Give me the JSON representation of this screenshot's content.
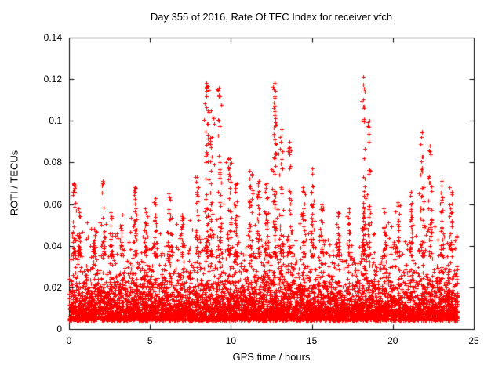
{
  "chart_data": {
    "type": "scatter",
    "title": "Day 355 of 2016, Rate Of TEC Index for receiver vfch",
    "xlabel": "GPS time / hours",
    "ylabel": "ROTI / TECUs",
    "xlim": [
      0,
      25
    ],
    "ylim": [
      0,
      0.14
    ],
    "xticks": [
      "0",
      "5",
      "10",
      "15",
      "20",
      "25"
    ],
    "xtick_values": [
      0,
      5,
      10,
      15,
      20,
      25
    ],
    "yticks": [
      "0",
      "0.02",
      "0.04",
      "0.06",
      "0.08",
      "0.1",
      "0.12",
      "0.14"
    ],
    "ytick_values": [
      0,
      0.02,
      0.04,
      0.06,
      0.08,
      0.1,
      0.12,
      0.14
    ],
    "marker": "plus",
    "marker_color": "#ff0000",
    "axis_color": "#000000",
    "grid": false,
    "legend": "none",
    "x_data_range": [
      0,
      24
    ],
    "baseline": {
      "y_min": 0.004,
      "y_typical_low": 0.008,
      "y_typical_high": 0.035,
      "tail_max": 0.055,
      "n_points": 7000
    },
    "spikes": [
      {
        "x": 0.3,
        "peak": 0.07,
        "n": 28
      },
      {
        "x": 0.6,
        "peak": 0.058,
        "n": 18
      },
      {
        "x": 1.6,
        "peak": 0.048,
        "n": 15
      },
      {
        "x": 2.1,
        "peak": 0.071,
        "n": 22
      },
      {
        "x": 2.6,
        "peak": 0.056,
        "n": 18
      },
      {
        "x": 3.2,
        "peak": 0.05,
        "n": 15
      },
      {
        "x": 4.1,
        "peak": 0.068,
        "n": 26
      },
      {
        "x": 4.7,
        "peak": 0.058,
        "n": 18
      },
      {
        "x": 5.3,
        "peak": 0.063,
        "n": 22
      },
      {
        "x": 6.2,
        "peak": 0.065,
        "n": 22
      },
      {
        "x": 7.0,
        "peak": 0.055,
        "n": 18
      },
      {
        "x": 7.9,
        "peak": 0.073,
        "n": 26
      },
      {
        "x": 8.5,
        "peak": 0.118,
        "n": 55
      },
      {
        "x": 8.8,
        "peak": 0.105,
        "n": 35
      },
      {
        "x": 9.3,
        "peak": 0.116,
        "n": 40
      },
      {
        "x": 9.9,
        "peak": 0.082,
        "n": 35
      },
      {
        "x": 10.3,
        "peak": 0.07,
        "n": 28
      },
      {
        "x": 11.2,
        "peak": 0.076,
        "n": 30
      },
      {
        "x": 11.7,
        "peak": 0.071,
        "n": 26
      },
      {
        "x": 12.2,
        "peak": 0.07,
        "n": 26
      },
      {
        "x": 12.7,
        "peak": 0.118,
        "n": 60
      },
      {
        "x": 13.1,
        "peak": 0.096,
        "n": 35
      },
      {
        "x": 13.6,
        "peak": 0.09,
        "n": 28
      },
      {
        "x": 14.5,
        "peak": 0.068,
        "n": 22
      },
      {
        "x": 15.0,
        "peak": 0.077,
        "n": 30
      },
      {
        "x": 15.6,
        "peak": 0.06,
        "n": 18
      },
      {
        "x": 16.6,
        "peak": 0.056,
        "n": 16
      },
      {
        "x": 17.3,
        "peak": 0.058,
        "n": 16
      },
      {
        "x": 18.2,
        "peak": 0.121,
        "n": 45
      },
      {
        "x": 18.5,
        "peak": 0.1,
        "n": 28
      },
      {
        "x": 19.5,
        "peak": 0.058,
        "n": 16
      },
      {
        "x": 20.3,
        "peak": 0.061,
        "n": 20
      },
      {
        "x": 21.1,
        "peak": 0.066,
        "n": 22
      },
      {
        "x": 21.8,
        "peak": 0.095,
        "n": 32
      },
      {
        "x": 22.3,
        "peak": 0.088,
        "n": 26
      },
      {
        "x": 23.0,
        "peak": 0.071,
        "n": 26
      },
      {
        "x": 23.6,
        "peak": 0.068,
        "n": 22
      }
    ]
  }
}
